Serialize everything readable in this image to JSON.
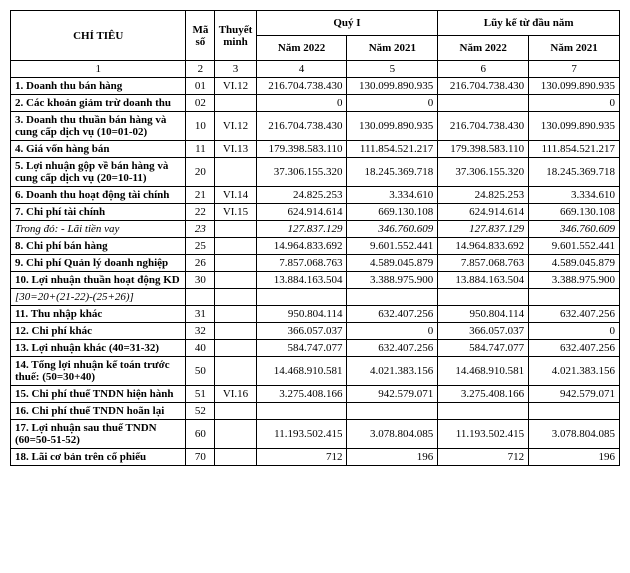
{
  "header": {
    "chitieu": "CHỈ TIÊU",
    "maso": "Mã số",
    "thuyetminh": "Thuyết minh",
    "quy1": "Quý I",
    "luyke": "Lũy kế từ đầu năm",
    "nam2022": "Năm 2022",
    "nam2021": "Năm 2021"
  },
  "colnums": [
    "1",
    "2",
    "3",
    "4",
    "5",
    "6",
    "7"
  ],
  "rows": [
    {
      "title": "1. Doanh thu bán hàng",
      "ms": "01",
      "tm": "VI.12",
      "q22": "216.704.738.430",
      "q21": "130.099.890.935",
      "l22": "216.704.738.430",
      "l21": "130.099.890.935",
      "bold": true
    },
    {
      "title": "2. Các khoản giảm trừ doanh thu",
      "ms": "02",
      "tm": "",
      "q22": "0",
      "q21": "0",
      "l22": "",
      "l21": "0",
      "bold": true
    },
    {
      "title": "3. Doanh thu thuần bán hàng và cung cấp dịch vụ (10=01-02)",
      "ms": "10",
      "tm": "VI.12",
      "q22": "216.704.738.430",
      "q21": "130.099.890.935",
      "l22": "216.704.738.430",
      "l21": "130.099.890.935",
      "bold": true
    },
    {
      "title": "4. Giá vốn hàng bán",
      "ms": "11",
      "tm": "VI.13",
      "q22": "179.398.583.110",
      "q21": "111.854.521.217",
      "l22": "179.398.583.110",
      "l21": "111.854.521.217",
      "bold": true
    },
    {
      "title": "5. Lợi nhuận gộp về bán hàng và cung cấp dịch vụ (20=10-11)",
      "ms": "20",
      "tm": "",
      "q22": "37.306.155.320",
      "q21": "18.245.369.718",
      "l22": "37.306.155.320",
      "l21": "18.245.369.718",
      "bold": true
    },
    {
      "title": "6. Doanh thu hoạt động tài chính",
      "ms": "21",
      "tm": "VI.14",
      "q22": "24.825.253",
      "q21": "3.334.610",
      "l22": "24.825.253",
      "l21": "3.334.610",
      "bold": true
    },
    {
      "title": "7. Chi phí tài chính",
      "ms": "22",
      "tm": "VI.15",
      "q22": "624.914.614",
      "q21": "669.130.108",
      "l22": "624.914.614",
      "l21": "669.130.108",
      "bold": true
    },
    {
      "title": "Trong đó: - Lãi tiền vay",
      "ms": "23",
      "tm": "",
      "q22": "127.837.129",
      "q21": "346.760.609",
      "l22": "127.837.129",
      "l21": "346.760.609",
      "italic": true
    },
    {
      "title": "8. Chi phí bán hàng",
      "ms": "25",
      "tm": "",
      "q22": "14.964.833.692",
      "q21": "9.601.552.441",
      "l22": "14.964.833.692",
      "l21": "9.601.552.441",
      "bold": true
    },
    {
      "title": "9. Chi phí Quản lý doanh nghiệp",
      "ms": "26",
      "tm": "",
      "q22": "7.857.068.763",
      "q21": "4.589.045.879",
      "l22": "7.857.068.763",
      "l21": "4.589.045.879",
      "bold": true
    },
    {
      "title": "10. Lợi nhuận thuần hoạt động KD",
      "ms": "30",
      "tm": "",
      "q22": "13.884.163.504",
      "q21": "3.388.975.900",
      "l22": "13.884.163.504",
      "l21": "3.388.975.900",
      "bold": true
    },
    {
      "title": "[30=20+(21-22)-(25+26)]",
      "ms": "",
      "tm": "",
      "q22": "",
      "q21": "",
      "l22": "",
      "l21": "",
      "italic": true
    },
    {
      "title": "11. Thu nhập khác",
      "ms": "31",
      "tm": "",
      "q22": "950.804.114",
      "q21": "632.407.256",
      "l22": "950.804.114",
      "l21": "632.407.256",
      "bold": true
    },
    {
      "title": "12. Chi phí khác",
      "ms": "32",
      "tm": "",
      "q22": "366.057.037",
      "q21": "0",
      "l22": "366.057.037",
      "l21": "0",
      "bold": true
    },
    {
      "title": "13. Lợi nhuận khác (40=31-32)",
      "ms": "40",
      "tm": "",
      "q22": "584.747.077",
      "q21": "632.407.256",
      "l22": "584.747.077",
      "l21": "632.407.256",
      "bold": true
    },
    {
      "title": "14. Tổng lợi nhuận kế toán trước thuế: (50=30+40)",
      "ms": "50",
      "tm": "",
      "q22": "14.468.910.581",
      "q21": "4.021.383.156",
      "l22": "14.468.910.581",
      "l21": "4.021.383.156",
      "bold": true
    },
    {
      "title": "15. Chi phí thuế TNDN hiện hành",
      "ms": "51",
      "tm": "VI.16",
      "q22": "3.275.408.166",
      "q21": "942.579.071",
      "l22": "3.275.408.166",
      "l21": "942.579.071",
      "bold": true
    },
    {
      "title": "16. Chi phí thuế TNDN hoãn lại",
      "ms": "52",
      "tm": "",
      "q22": "",
      "q21": "",
      "l22": "",
      "l21": "",
      "bold": true
    },
    {
      "title": "17. Lợi nhuận sau thuế TNDN (60=50-51-52)",
      "ms": "60",
      "tm": "",
      "q22": "11.193.502.415",
      "q21": "3.078.804.085",
      "l22": "11.193.502.415",
      "l21": "3.078.804.085",
      "bold": true
    },
    {
      "title": "18. Lãi cơ bản trên cổ phiếu",
      "ms": "70",
      "tm": "",
      "q22": "712",
      "q21": "196",
      "l22": "712",
      "l21": "196",
      "bold": true
    }
  ]
}
